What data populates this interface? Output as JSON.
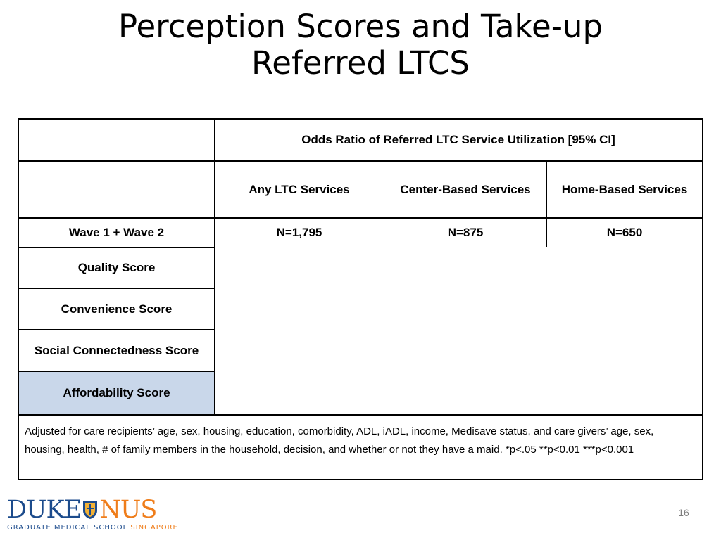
{
  "slide": {
    "title_line1": "Perception Scores and Take-up",
    "title_line2": "Referred LTCS",
    "page_number": "16"
  },
  "table": {
    "header_main": "Odds Ratio of Referred LTC Service Utilization [95% CI]",
    "columns": [
      "Any LTC Services",
      "Center-Based Services",
      "Home-Based Services"
    ],
    "wave_label": "Wave 1 + Wave 2",
    "n_values": [
      "N=1,795",
      "N=875",
      "N=650"
    ],
    "rows": [
      "Quality Score",
      "Convenience Score",
      "Social Connectedness Score",
      "Affordability Score"
    ],
    "note": "Adjusted for care recipients’ age, sex, housing, education, comorbidity, ADL, iADL, income, Medisave status, and care givers’ age, sex, housing, health, # of family members in the household, decision, and whether or not they have a maid.    *p<.05   **p<0.01   ***p<0.001"
  },
  "logo": {
    "word_left": "DUKE",
    "word_right": "NUS",
    "sub_left": "GRADUATE MEDICAL SCHOOL ",
    "sub_right": "SINGAPORE",
    "color_blue": "#1c4b8c",
    "color_orange": "#ef7d1a"
  },
  "colors": {
    "highlight_row": "#c9d7ea"
  }
}
